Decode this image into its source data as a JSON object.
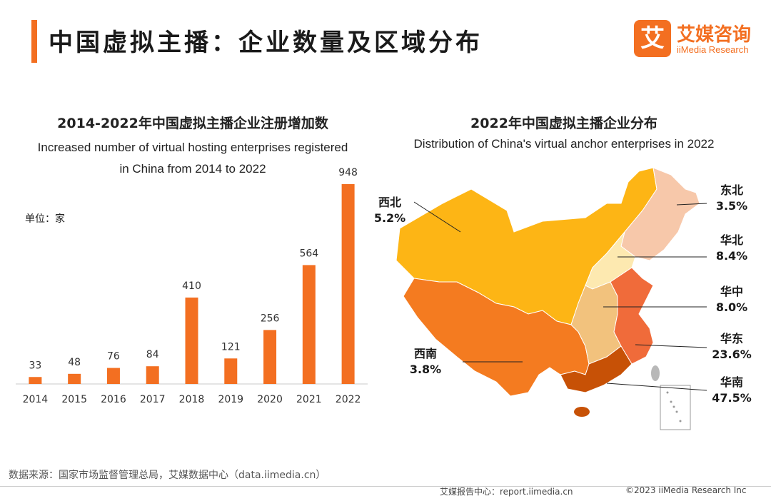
{
  "header": {
    "title": "中国虚拟主播：企业数量及区域分布",
    "logo_mark": "艾",
    "logo_cn": "艾媒咨询",
    "logo_en": "iiMedia Research"
  },
  "bar_chart": {
    "title_cn": "2014-2022年中国虚拟主播企业注册增加数",
    "title_en_line1": "Increased number of virtual hosting enterprises registered",
    "title_en_line2": "in China from 2014 to 2022",
    "unit": "单位：家"
  },
  "map_chart": {
    "title_cn": "2022年中国虚拟主播企业分布",
    "title_en": "Distribution of China's virtual anchor enterprises in 2022"
  },
  "chart_data": [
    {
      "type": "bar",
      "categories": [
        "2014",
        "2015",
        "2016",
        "2017",
        "2018",
        "2019",
        "2020",
        "2021",
        "2022"
      ],
      "values": [
        33,
        48,
        76,
        84,
        410,
        121,
        256,
        564,
        948
      ],
      "color": "#f36f21",
      "title": "2014-2022年中国虚拟主播企业注册增加数",
      "ylabel": "单位：家",
      "ylim": [
        0,
        948
      ],
      "grid": false
    },
    {
      "type": "pie",
      "categories": [
        "西北",
        "西南",
        "东北",
        "华北",
        "华中",
        "华东",
        "华南"
      ],
      "values": [
        5.2,
        3.8,
        3.5,
        8.4,
        8.0,
        23.6,
        47.5
      ],
      "labels": [
        "5.2%",
        "3.8%",
        "3.5%",
        "8.4%",
        "8.0%",
        "23.6%",
        "47.5%"
      ],
      "colors": [
        "#fdb515",
        "#f47b20",
        "#f7c8aa",
        "#fde9b0",
        "#f2c27d",
        "#f06b3a",
        "#c75106"
      ],
      "title": "2022年中国虚拟主播企业分布"
    }
  ],
  "footer": {
    "source": "数据来源：国家市场监督管理总局，艾媒数据中心（data.iimedia.cn）",
    "report": "艾媒报告中心：report.iimedia.cn",
    "copyright": "©2023  iiMedia Research  Inc"
  }
}
